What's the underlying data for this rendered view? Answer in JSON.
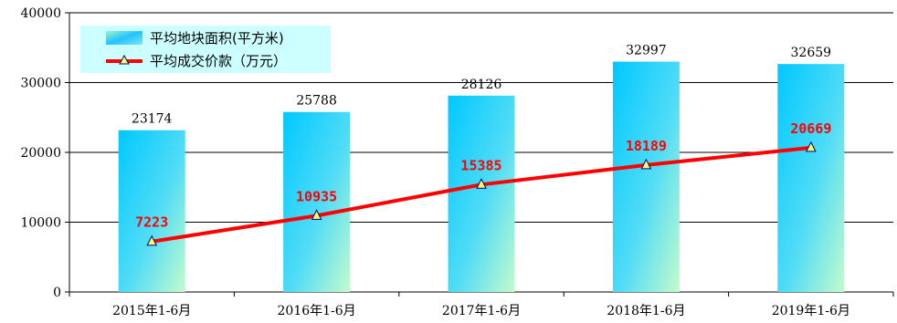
{
  "chart_data": {
    "type": "bar+line",
    "categories": [
      "2015年1-6月",
      "2016年1-6月",
      "2017年1-6月",
      "2018年1-6月",
      "2019年1-6月"
    ],
    "series": [
      {
        "name": "平均地块面积(平方米)",
        "type": "bar",
        "values": [
          23174,
          25788,
          28126,
          32997,
          32659
        ],
        "color": "#33ccff"
      },
      {
        "name": "平均成交价款（万元）",
        "type": "line",
        "values": [
          7223,
          10935,
          15385,
          18189,
          20669
        ],
        "color": "#ff0000",
        "marker": "triangle"
      }
    ],
    "ylim": [
      0,
      40000
    ],
    "yticks": [
      0,
      10000,
      20000,
      30000,
      40000
    ],
    "grid": true,
    "legend": "top-left"
  }
}
